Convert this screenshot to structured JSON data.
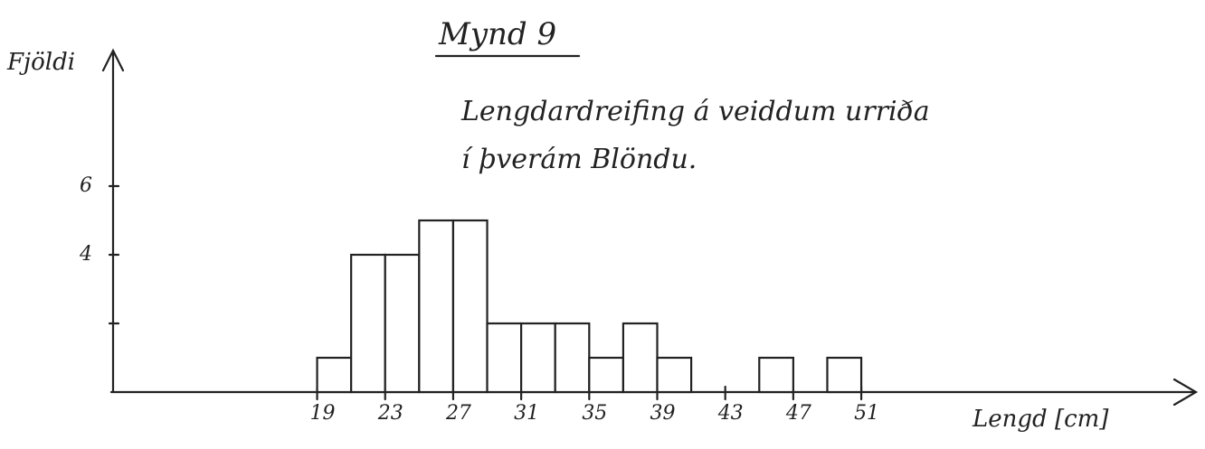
{
  "chart_data": {
    "type": "histogram",
    "title": "Mynd 9",
    "subtitle": [
      "Lengdardreifing á veiddum urriða",
      "í þverám Blöndu."
    ],
    "xlabel": "Lengd [cm]",
    "ylabel": "Fjöldi",
    "bins": [
      19,
      21,
      23,
      25,
      27,
      29,
      31,
      33,
      35,
      37,
      39,
      41,
      43,
      45,
      47,
      49,
      51
    ],
    "values": [
      1,
      4,
      4,
      5,
      5,
      2,
      2,
      2,
      1,
      2,
      1,
      0,
      0,
      1,
      0,
      1
    ],
    "color": "#ffffff",
    "xlim": [
      7,
      71
    ],
    "xticks": [
      19,
      23,
      27,
      31,
      35,
      39,
      43,
      47,
      51
    ],
    "ylim": [
      0,
      10
    ],
    "yticks": [
      {
        "value": 2,
        "label": null
      },
      4,
      6
    ],
    "grid": false
  }
}
